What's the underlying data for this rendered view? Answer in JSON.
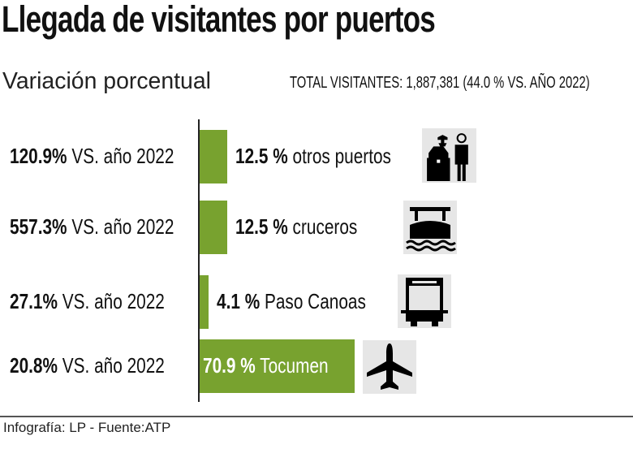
{
  "title": "Llegada de visitantes por puertos",
  "subtitle": "Variación porcentual",
  "total": "TOTAL VISITANTES: 1,887,381 (44.0 % VS. AÑO 2022)",
  "footer": "Infografía: LP - Fuente:ATP",
  "colors": {
    "bar": "#78a22f",
    "icon_bg": "#e6e6e6"
  },
  "chart_data": {
    "type": "bar",
    "orientation": "horizontal",
    "title": "Llegada de visitantes por puertos",
    "categories": [
      "otros puertos",
      "cruceros",
      "Paso Canoas",
      "Tocumen"
    ],
    "values": [
      12.5,
      12.5,
      4.1,
      70.9
    ],
    "unit": "%",
    "value_labels": [
      "12.5 %",
      "12.5 %",
      "4.1 %",
      "70.9 %"
    ],
    "variation_labels": [
      "120.9%",
      "557.3%",
      "27.1%",
      "20.8%"
    ],
    "variation_suffix": "VS. año 2022",
    "icons": [
      "immigration-officer-icon",
      "ship-icon",
      "bus-icon",
      "airplane-icon"
    ],
    "grid": false,
    "legend": "none"
  }
}
